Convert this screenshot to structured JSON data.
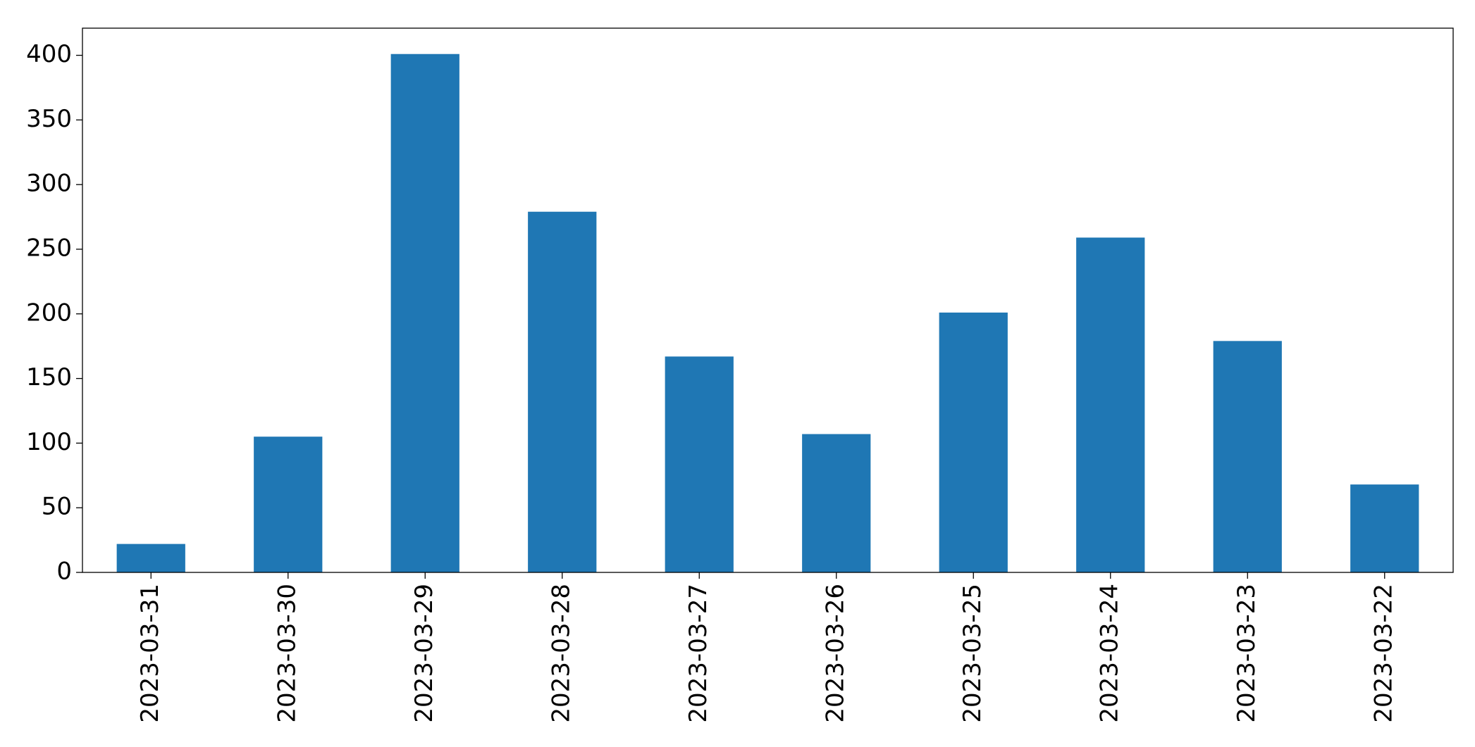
{
  "chart_data": {
    "type": "bar",
    "categories": [
      "2023-03-31",
      "2023-03-30",
      "2023-03-29",
      "2023-03-28",
      "2023-03-27",
      "2023-03-26",
      "2023-03-25",
      "2023-03-24",
      "2023-03-23",
      "2023-03-22"
    ],
    "values": [
      22,
      105,
      401,
      279,
      167,
      107,
      201,
      259,
      179,
      68
    ],
    "color": "#1f77b4",
    "ylim": [
      0,
      421
    ],
    "yticks": [
      0,
      50,
      100,
      150,
      200,
      250,
      300,
      350,
      400
    ],
    "grid": false
  }
}
